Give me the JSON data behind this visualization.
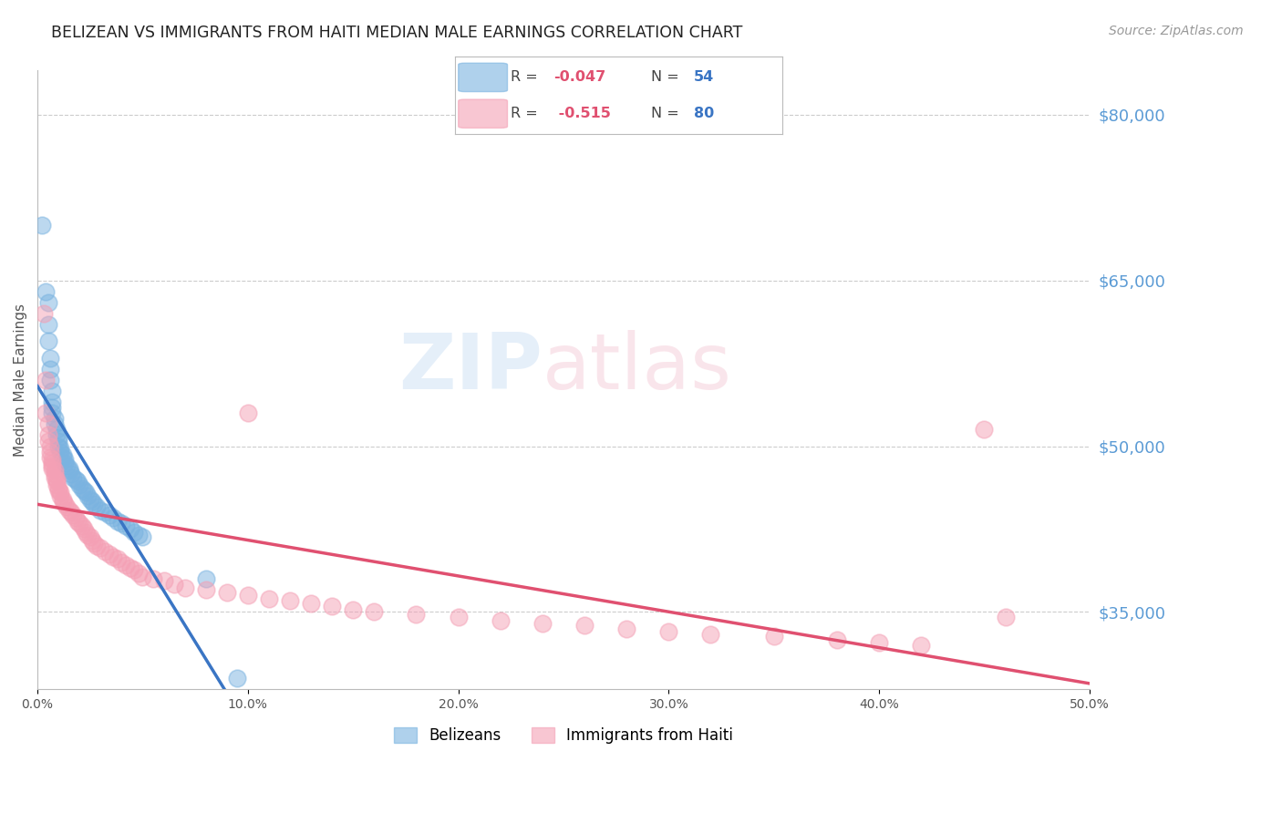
{
  "title": "BELIZEAN VS IMMIGRANTS FROM HAITI MEDIAN MALE EARNINGS CORRELATION CHART",
  "source": "Source: ZipAtlas.com",
  "ylabel": "Median Male Earnings",
  "right_ytick_labels": [
    "$80,000",
    "$65,000",
    "$50,000",
    "$35,000"
  ],
  "right_ytick_values": [
    80000,
    65000,
    50000,
    35000
  ],
  "xlim": [
    0.0,
    0.5
  ],
  "ylim": [
    28000,
    84000
  ],
  "belizean_color": "#7ab3e0",
  "haiti_color": "#f4a0b5",
  "belizean_line_color": "#3a75c4",
  "haiti_line_color": "#e05070",
  "background_color": "#ffffff",
  "grid_color": "#cccccc",
  "title_color": "#222222",
  "right_label_color": "#5b9bd5",
  "legend_R_color": "#e05070",
  "legend_N_color": "#3a75c4",
  "xtick_labels": [
    "0.0%",
    "10.0%",
    "20.0%",
    "30.0%",
    "40.0%",
    "50.0%"
  ],
  "xtick_vals": [
    0.0,
    0.1,
    0.2,
    0.3,
    0.4,
    0.5
  ],
  "bel_R": "-0.047",
  "bel_N": "54",
  "hai_R": "-0.515",
  "hai_N": "80",
  "bottom_legend": [
    "Belizeans",
    "Immigrants from Haiti"
  ]
}
